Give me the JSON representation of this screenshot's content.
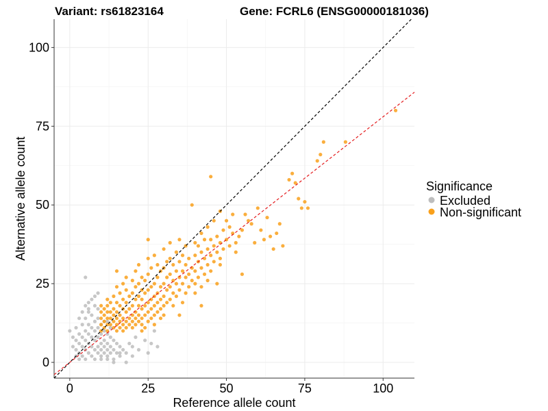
{
  "chart_data": {
    "type": "scatter",
    "title_left": "Variant: rs61823164",
    "title_right": "Gene: FCRL6 (ENSG00000181036)",
    "xlabel": "Reference allele count",
    "ylabel": "Alternative allele count",
    "xlim": [
      -5,
      110
    ],
    "ylim": [
      -5,
      109
    ],
    "x_ticks": [
      0,
      25,
      50,
      75,
      100
    ],
    "y_ticks": [
      0,
      25,
      50,
      75,
      100
    ],
    "grid": true,
    "legend": {
      "title": "Significance",
      "position": "right",
      "entries": [
        {
          "label": "Excluded",
          "color": "#bdbdbd"
        },
        {
          "label": "Non-significant",
          "color": "#f9a01b"
        }
      ]
    },
    "reference_lines": [
      {
        "name": "identity",
        "slope": 1,
        "intercept": 0,
        "color": "#000000",
        "dash": true
      },
      {
        "name": "fit",
        "slope": 0.78,
        "intercept": 0,
        "color": "#e41a1c",
        "dash": true
      }
    ],
    "series": [
      {
        "name": "Excluded",
        "color": "#bdbdbd",
        "points": [
          [
            0,
            10
          ],
          [
            1,
            8
          ],
          [
            1,
            5
          ],
          [
            2,
            7
          ],
          [
            2,
            4
          ],
          [
            2,
            2
          ],
          [
            3,
            9
          ],
          [
            3,
            6
          ],
          [
            3,
            3
          ],
          [
            3,
            1
          ],
          [
            4,
            12
          ],
          [
            4,
            8
          ],
          [
            4,
            5
          ],
          [
            4,
            2
          ],
          [
            5,
            14
          ],
          [
            5,
            10
          ],
          [
            5,
            7
          ],
          [
            5,
            4
          ],
          [
            5,
            1
          ],
          [
            5,
            27
          ],
          [
            6,
            16
          ],
          [
            6,
            12
          ],
          [
            6,
            9
          ],
          [
            6,
            6
          ],
          [
            6,
            3
          ],
          [
            6,
            17
          ],
          [
            7,
            15
          ],
          [
            7,
            11
          ],
          [
            7,
            8
          ],
          [
            7,
            5
          ],
          [
            7,
            2
          ],
          [
            8,
            18
          ],
          [
            8,
            13
          ],
          [
            8,
            10
          ],
          [
            8,
            7
          ],
          [
            8,
            4
          ],
          [
            8,
            1
          ],
          [
            9,
            17
          ],
          [
            9,
            14
          ],
          [
            9,
            11
          ],
          [
            9,
            8
          ],
          [
            9,
            5
          ],
          [
            9,
            3
          ],
          [
            10,
            12
          ],
          [
            10,
            9
          ],
          [
            10,
            6
          ],
          [
            10,
            4
          ],
          [
            10,
            2
          ],
          [
            11,
            10
          ],
          [
            11,
            7
          ],
          [
            11,
            5
          ],
          [
            11,
            3
          ],
          [
            12,
            9
          ],
          [
            12,
            6
          ],
          [
            12,
            4
          ],
          [
            12,
            2
          ],
          [
            13,
            8
          ],
          [
            13,
            5
          ],
          [
            13,
            3
          ],
          [
            14,
            7
          ],
          [
            14,
            4
          ],
          [
            14,
            1
          ],
          [
            15,
            6
          ],
          [
            15,
            3
          ],
          [
            16,
            5
          ],
          [
            16,
            2
          ],
          [
            17,
            4
          ],
          [
            18,
            3
          ],
          [
            19,
            6
          ],
          [
            20,
            5
          ],
          [
            21,
            8
          ],
          [
            22,
            4
          ],
          [
            24,
            7
          ],
          [
            25,
            3
          ],
          [
            26,
            6
          ],
          [
            27,
            10
          ],
          [
            28,
            5
          ],
          [
            4,
            16
          ],
          [
            5,
            18
          ],
          [
            7,
            20
          ],
          [
            8,
            21
          ],
          [
            6,
            19
          ],
          [
            3,
            14
          ],
          [
            2,
            11
          ],
          [
            9,
            22
          ],
          [
            10,
            1
          ],
          [
            12,
            1
          ],
          [
            14,
            0
          ],
          [
            16,
            3
          ],
          [
            18,
            0
          ],
          [
            11,
            13
          ],
          [
            12,
            13
          ],
          [
            13,
            11
          ],
          [
            20,
            2
          ]
        ]
      },
      {
        "name": "Non-significant",
        "color": "#f9a01b",
        "points": [
          [
            10,
            10
          ],
          [
            10,
            12
          ],
          [
            10,
            14
          ],
          [
            10,
            16
          ],
          [
            10,
            18
          ],
          [
            11,
            11
          ],
          [
            11,
            13
          ],
          [
            11,
            15
          ],
          [
            11,
            17
          ],
          [
            12,
            10
          ],
          [
            12,
            12
          ],
          [
            12,
            14
          ],
          [
            12,
            16
          ],
          [
            12,
            18
          ],
          [
            12,
            20
          ],
          [
            13,
            12
          ],
          [
            13,
            14
          ],
          [
            13,
            16
          ],
          [
            13,
            19
          ],
          [
            14,
            11
          ],
          [
            14,
            13
          ],
          [
            14,
            15
          ],
          [
            14,
            17
          ],
          [
            14,
            21
          ],
          [
            15,
            10
          ],
          [
            15,
            12
          ],
          [
            15,
            14
          ],
          [
            15,
            16
          ],
          [
            15,
            19
          ],
          [
            15,
            24
          ],
          [
            15,
            29
          ],
          [
            16,
            11
          ],
          [
            16,
            13
          ],
          [
            16,
            15
          ],
          [
            16,
            18
          ],
          [
            16,
            22
          ],
          [
            17,
            10
          ],
          [
            17,
            12
          ],
          [
            17,
            14
          ],
          [
            17,
            17
          ],
          [
            17,
            20
          ],
          [
            17,
            25
          ],
          [
            18,
            11
          ],
          [
            18,
            13
          ],
          [
            18,
            16
          ],
          [
            18,
            19
          ],
          [
            18,
            23
          ],
          [
            18,
            27
          ],
          [
            19,
            12
          ],
          [
            19,
            14
          ],
          [
            19,
            17
          ],
          [
            19,
            21
          ],
          [
            20,
            11
          ],
          [
            20,
            13
          ],
          [
            20,
            15
          ],
          [
            20,
            18
          ],
          [
            20,
            22
          ],
          [
            20,
            26
          ],
          [
            21,
            12
          ],
          [
            21,
            14
          ],
          [
            21,
            16
          ],
          [
            21,
            20
          ],
          [
            21,
            24
          ],
          [
            21,
            29
          ],
          [
            22,
            13
          ],
          [
            22,
            15
          ],
          [
            22,
            18
          ],
          [
            22,
            21
          ],
          [
            22,
            25
          ],
          [
            22,
            31
          ],
          [
            23,
            12
          ],
          [
            23,
            14
          ],
          [
            23,
            17
          ],
          [
            23,
            20
          ],
          [
            23,
            23
          ],
          [
            23,
            27
          ],
          [
            24,
            11
          ],
          [
            24,
            15
          ],
          [
            24,
            18
          ],
          [
            24,
            22
          ],
          [
            24,
            26
          ],
          [
            25,
            13
          ],
          [
            25,
            16
          ],
          [
            25,
            19
          ],
          [
            25,
            23
          ],
          [
            25,
            28
          ],
          [
            25,
            33
          ],
          [
            25,
            39
          ],
          [
            26,
            14
          ],
          [
            26,
            17
          ],
          [
            26,
            20
          ],
          [
            26,
            24
          ],
          [
            26,
            30
          ],
          [
            27,
            15
          ],
          [
            27,
            18
          ],
          [
            27,
            21
          ],
          [
            27,
            25
          ],
          [
            27,
            34
          ],
          [
            28,
            16
          ],
          [
            28,
            19
          ],
          [
            28,
            22
          ],
          [
            28,
            27
          ],
          [
            28,
            31
          ],
          [
            29,
            14
          ],
          [
            29,
            17
          ],
          [
            29,
            20
          ],
          [
            29,
            24
          ],
          [
            29,
            29
          ],
          [
            30,
            18
          ],
          [
            30,
            21
          ],
          [
            30,
            25
          ],
          [
            30,
            30
          ],
          [
            30,
            36
          ],
          [
            31,
            19
          ],
          [
            31,
            23
          ],
          [
            31,
            27
          ],
          [
            31,
            32
          ],
          [
            32,
            20
          ],
          [
            32,
            24
          ],
          [
            32,
            28
          ],
          [
            32,
            33
          ],
          [
            32,
            38
          ],
          [
            33,
            18
          ],
          [
            33,
            22
          ],
          [
            33,
            26
          ],
          [
            33,
            31
          ],
          [
            34,
            21
          ],
          [
            34,
            25
          ],
          [
            34,
            29
          ],
          [
            34,
            35
          ],
          [
            35,
            23
          ],
          [
            35,
            27
          ],
          [
            35,
            32
          ],
          [
            35,
            39
          ],
          [
            36,
            25
          ],
          [
            36,
            29
          ],
          [
            36,
            34
          ],
          [
            37,
            22
          ],
          [
            37,
            27
          ],
          [
            37,
            31
          ],
          [
            37,
            37
          ],
          [
            38,
            24
          ],
          [
            38,
            28
          ],
          [
            38,
            33
          ],
          [
            39,
            26
          ],
          [
            39,
            30
          ],
          [
            39,
            50
          ],
          [
            40,
            25
          ],
          [
            40,
            29
          ],
          [
            40,
            34
          ],
          [
            40,
            38
          ],
          [
            41,
            27
          ],
          [
            41,
            32
          ],
          [
            41,
            37
          ],
          [
            42,
            24
          ],
          [
            42,
            30
          ],
          [
            42,
            35
          ],
          [
            42,
            41
          ],
          [
            43,
            28
          ],
          [
            43,
            33
          ],
          [
            43,
            39
          ],
          [
            44,
            31
          ],
          [
            44,
            36
          ],
          [
            44,
            43
          ],
          [
            45,
            29
          ],
          [
            45,
            34
          ],
          [
            45,
            39
          ],
          [
            45,
            59
          ],
          [
            46,
            32
          ],
          [
            46,
            37
          ],
          [
            46,
            45
          ],
          [
            47,
            25
          ],
          [
            47,
            35
          ],
          [
            47,
            40
          ],
          [
            48,
            33
          ],
          [
            48,
            38
          ],
          [
            48,
            48
          ],
          [
            49,
            36
          ],
          [
            49,
            42
          ],
          [
            50,
            39
          ],
          [
            50,
            45
          ],
          [
            51,
            37
          ],
          [
            51,
            43
          ],
          [
            52,
            41
          ],
          [
            53,
            38
          ],
          [
            53,
            35
          ],
          [
            54,
            40
          ],
          [
            55,
            42
          ],
          [
            55,
            28
          ],
          [
            56,
            47
          ],
          [
            57,
            45
          ],
          [
            58,
            44
          ],
          [
            59,
            38
          ],
          [
            60,
            49
          ],
          [
            61,
            42
          ],
          [
            62,
            39
          ],
          [
            63,
            46
          ],
          [
            64,
            40
          ],
          [
            65,
            36
          ],
          [
            66,
            41
          ],
          [
            67,
            44
          ],
          [
            68,
            37
          ],
          [
            70,
            58
          ],
          [
            71,
            60
          ],
          [
            72,
            57
          ],
          [
            73,
            52
          ],
          [
            74,
            49
          ],
          [
            75,
            51
          ],
          [
            76,
            49
          ],
          [
            79,
            64
          ],
          [
            80,
            66
          ],
          [
            81,
            70
          ],
          [
            88,
            70
          ],
          [
            104,
            80
          ],
          [
            52,
            47
          ],
          [
            48,
            31
          ],
          [
            44,
            26
          ],
          [
            40,
            22
          ],
          [
            36,
            19
          ],
          [
            30,
            15
          ],
          [
            27,
            12
          ],
          [
            23,
            10
          ],
          [
            35,
            15
          ],
          [
            42,
            18
          ]
        ]
      }
    ]
  }
}
